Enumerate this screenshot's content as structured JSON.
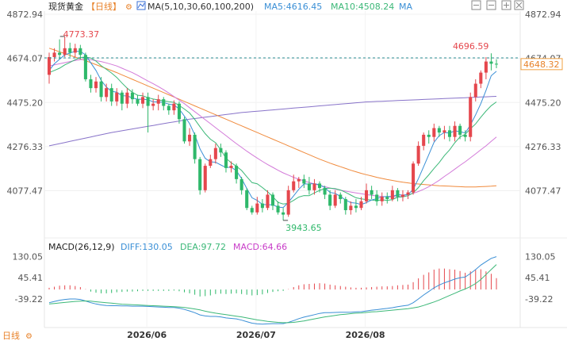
{
  "header": {
    "title": "现货黄金",
    "period": "【日线】",
    "ma_label": "MA(5,10,30,60,100,200)",
    "ma5": "MA5:4616.45",
    "ma10": "MA10:4508.24",
    "ma": "MA"
  },
  "macd_header": {
    "label": "MACD(26,12,9)",
    "diff": "DIFF:130.05",
    "dea": "DEA:97.72",
    "macd": "MACD:64.66"
  },
  "footer": {
    "period_switch": "日线"
  },
  "chart_data": {
    "type": "candlestick",
    "y_ticks": [
      "4872.94",
      "4674.07",
      "4475.20",
      "4276.33",
      "4077.47"
    ],
    "ylim": [
      3943.65,
      4872.94
    ],
    "current_price": "4648.32",
    "high_label": "4773.37",
    "low_label": "3943.65",
    "recent_high_label": "4696.59",
    "x_ticks": [
      "2026/06",
      "2026/07",
      "2026/08"
    ],
    "colors": {
      "up": "#e5474d",
      "down": "#2eb86a",
      "ma5": "#3a8fd6",
      "ma10": "#3cb878",
      "ma30": "#d37ad9",
      "ma60": "#f08a3c",
      "ma100": "#8873c9"
    },
    "candles": [
      [
        4600,
        4680,
        4560,
        4700
      ],
      [
        4680,
        4700,
        4660,
        4720
      ],
      [
        4700,
        4690,
        4670,
        4760
      ],
      [
        4690,
        4720,
        4680,
        4773
      ],
      [
        4720,
        4700,
        4680,
        4745
      ],
      [
        4700,
        4720,
        4680,
        4740
      ],
      [
        4720,
        4690,
        4670,
        4735
      ],
      [
        4690,
        4580,
        4570,
        4700
      ],
      [
        4580,
        4540,
        4520,
        4600
      ],
      [
        4540,
        4570,
        4520,
        4590
      ],
      [
        4570,
        4500,
        4480,
        4590
      ],
      [
        4500,
        4540,
        4480,
        4560
      ],
      [
        4540,
        4480,
        4460,
        4560
      ],
      [
        4480,
        4520,
        4460,
        4540
      ],
      [
        4520,
        4470,
        4440,
        4530
      ],
      [
        4470,
        4520,
        4450,
        4540
      ],
      [
        4520,
        4490,
        4470,
        4535
      ],
      [
        4490,
        4470,
        4460,
        4510
      ],
      [
        4470,
        4500,
        4450,
        4520
      ],
      [
        4500,
        4460,
        4340,
        4520
      ],
      [
        4460,
        4470,
        4440,
        4490
      ],
      [
        4470,
        4490,
        4440,
        4510
      ],
      [
        4490,
        4460,
        4440,
        4500
      ],
      [
        4460,
        4440,
        4420,
        4470
      ],
      [
        4440,
        4470,
        4420,
        4485
      ],
      [
        4470,
        4400,
        4380,
        4480
      ],
      [
        4400,
        4300,
        4290,
        4410
      ],
      [
        4300,
        4330,
        4280,
        4360
      ],
      [
        4330,
        4220,
        4200,
        4340
      ],
      [
        4220,
        4080,
        4060,
        4230
      ],
      [
        4080,
        4190,
        4070,
        4200
      ],
      [
        4190,
        4220,
        4180,
        4240
      ],
      [
        4220,
        4270,
        4200,
        4290
      ],
      [
        4270,
        4250,
        4230,
        4290
      ],
      [
        4250,
        4180,
        4160,
        4260
      ],
      [
        4180,
        4190,
        4160,
        4210
      ],
      [
        4190,
        4130,
        4110,
        4200
      ],
      [
        4130,
        4080,
        4060,
        4140
      ],
      [
        4080,
        4000,
        3990,
        4090
      ],
      [
        4000,
        3980,
        3970,
        4010
      ],
      [
        3980,
        4020,
        3970,
        4050
      ],
      [
        4020,
        4000,
        3980,
        4040
      ],
      [
        4000,
        4060,
        3990,
        4080
      ],
      [
        4060,
        4010,
        3990,
        4070
      ],
      [
        4010,
        3980,
        3970,
        4030
      ],
      [
        3980,
        3970,
        3944,
        4000
      ],
      [
        3970,
        4080,
        3960,
        4100
      ],
      [
        4080,
        4120,
        4070,
        4150
      ],
      [
        4120,
        4130,
        4090,
        4140
      ],
      [
        4130,
        4110,
        4090,
        4150
      ],
      [
        4110,
        4080,
        4060,
        4140
      ],
      [
        4080,
        4110,
        4060,
        4130
      ],
      [
        4110,
        4090,
        4070,
        4120
      ],
      [
        4090,
        4060,
        4040,
        4100
      ],
      [
        4060,
        4010,
        3990,
        4080
      ],
      [
        4010,
        4060,
        4000,
        4080
      ],
      [
        4060,
        4040,
        4020,
        4070
      ],
      [
        4040,
        3990,
        3970,
        4050
      ],
      [
        3990,
        4010,
        3970,
        4030
      ],
      [
        4010,
        4000,
        3980,
        4040
      ],
      [
        4000,
        4030,
        3990,
        4050
      ],
      [
        4030,
        4080,
        4020,
        4110
      ],
      [
        4080,
        4060,
        4040,
        4100
      ],
      [
        4060,
        4030,
        4010,
        4080
      ],
      [
        4030,
        4050,
        4010,
        4070
      ],
      [
        4050,
        4040,
        4020,
        4070
      ],
      [
        4040,
        4080,
        4030,
        4100
      ],
      [
        4080,
        4050,
        4030,
        4090
      ],
      [
        4050,
        4060,
        4030,
        4080
      ],
      [
        4060,
        4070,
        4040,
        4080
      ],
      [
        4070,
        4200,
        4060,
        4210
      ],
      [
        4200,
        4280,
        4190,
        4300
      ],
      [
        4280,
        4330,
        4260,
        4340
      ],
      [
        4330,
        4320,
        4290,
        4350
      ],
      [
        4320,
        4360,
        4300,
        4380
      ],
      [
        4360,
        4340,
        4320,
        4370
      ],
      [
        4340,
        4350,
        4310,
        4370
      ],
      [
        4350,
        4320,
        4300,
        4370
      ],
      [
        4320,
        4370,
        4300,
        4390
      ],
      [
        4370,
        4330,
        4310,
        4380
      ],
      [
        4330,
        4320,
        4300,
        4350
      ],
      [
        4320,
        4500,
        4300,
        4520
      ],
      [
        4500,
        4560,
        4480,
        4580
      ],
      [
        4560,
        4610,
        4540,
        4620
      ],
      [
        4610,
        4660,
        4580,
        4680
      ],
      [
        4660,
        4650,
        4620,
        4697
      ],
      [
        4650,
        4648,
        4630,
        4670
      ]
    ],
    "ma_series": {
      "ma5": [
        4620,
        4650,
        4670,
        4690,
        4698,
        4706,
        4706,
        4690,
        4654,
        4620,
        4575,
        4545,
        4526,
        4522,
        4506,
        4505,
        4496,
        4490,
        4490,
        4488,
        4478,
        4478,
        4476,
        4468,
        4464,
        4446,
        4414,
        4380,
        4330,
        4266,
        4224,
        4208,
        4206,
        4194,
        4182,
        4184,
        4168,
        4132,
        4088,
        4046,
        4034,
        4016,
        4014,
        4014,
        4004,
        4002,
        4026,
        4054,
        4084,
        4108,
        4108,
        4110,
        4104,
        4092,
        4070,
        4066,
        4052,
        4036,
        4024,
        4022,
        4016,
        4024,
        4036,
        4042,
        4050,
        4052,
        4052,
        4060,
        4058,
        4060,
        4084,
        4132,
        4186,
        4240,
        4296,
        4326,
        4340,
        4338,
        4348,
        4344,
        4338,
        4374,
        4420,
        4470,
        4530,
        4596,
        4616
      ],
      "ma10": [
        4610,
        4620,
        4630,
        4645,
        4656,
        4668,
        4678,
        4680,
        4676,
        4662,
        4641,
        4625,
        4608,
        4588,
        4563,
        4540,
        4521,
        4508,
        4506,
        4497,
        4491,
        4487,
        4483,
        4479,
        4476,
        4462,
        4446,
        4428,
        4399,
        4366,
        4335,
        4310,
        4294,
        4262,
        4224,
        4204,
        4188,
        4169,
        4141,
        4114,
        4109,
        4092,
        4073,
        4051,
        4025,
        4018,
        4021,
        4034,
        4049,
        4056,
        4055,
        4068,
        4079,
        4088,
        4089,
        4087,
        4081,
        4070,
        4058,
        4046,
        4041,
        4038,
        4036,
        4033,
        4037,
        4034,
        4038,
        4048,
        4050,
        4055,
        4068,
        4092,
        4123,
        4149,
        4178,
        4205,
        4236,
        4262,
        4294,
        4320,
        4332,
        4357,
        4379,
        4409,
        4437,
        4461,
        4478
      ],
      "ma30": [
        4640,
        4645,
        4650,
        4655,
        4660,
        4665,
        4668,
        4670,
        4668,
        4664,
        4660,
        4654,
        4647,
        4640,
        4630,
        4620,
        4610,
        4598,
        4585,
        4572,
        4560,
        4547,
        4533,
        4518,
        4502,
        4486,
        4470,
        4452,
        4434,
        4416,
        4398,
        4380,
        4362,
        4344,
        4326,
        4308,
        4290,
        4273,
        4256,
        4240,
        4225,
        4210,
        4196,
        4183,
        4170,
        4158,
        4148,
        4138,
        4130,
        4122,
        4115,
        4108,
        4102,
        4096,
        4090,
        4085,
        4080,
        4076,
        4072,
        4068,
        4064,
        4060,
        4057,
        4054,
        4052,
        4050,
        4050,
        4052,
        4055,
        4060,
        4066,
        4074,
        4084,
        4096,
        4110,
        4125,
        4142,
        4158,
        4175,
        4192,
        4208,
        4226,
        4244,
        4262,
        4280,
        4300,
        4320
      ],
      "ma60": [
        4720,
        4712,
        4704,
        4696,
        4688,
        4680,
        4672,
        4664,
        4655,
        4646,
        4637,
        4628,
        4619,
        4610,
        4600,
        4590,
        4580,
        4570,
        4560,
        4550,
        4540,
        4530,
        4520,
        4510,
        4500,
        4490,
        4480,
        4470,
        4460,
        4450,
        4440,
        4430,
        4420,
        4410,
        4400,
        4390,
        4380,
        4370,
        4360,
        4350,
        4340,
        4330,
        4320,
        4310,
        4300,
        4290,
        4280,
        4270,
        4260,
        4250,
        4240,
        4230,
        4220,
        4211,
        4202,
        4194,
        4186,
        4178,
        4170,
        4163,
        4156,
        4150,
        4144,
        4138,
        4133,
        4128,
        4124,
        4120,
        4116,
        4113,
        4110,
        4108,
        4106,
        4104,
        4102,
        4100,
        4099,
        4098,
        4097,
        4096,
        4095,
        4095,
        4095,
        4096,
        4097,
        4098,
        4100
      ],
      "ma100": [
        4280,
        4285,
        4290,
        4295,
        4300,
        4305,
        4310,
        4315,
        4320,
        4325,
        4330,
        4335,
        4340,
        4344,
        4348,
        4352,
        4356,
        4360,
        4364,
        4368,
        4372,
        4376,
        4380,
        4384,
        4388,
        4392,
        4396,
        4400,
        4403,
        4406,
        4409,
        4412,
        4415,
        4418,
        4421,
        4424,
        4427,
        4430,
        4432,
        4434,
        4436,
        4438,
        4440,
        4442,
        4444,
        4446,
        4448,
        4450,
        4452,
        4454,
        4456,
        4458,
        4460,
        4462,
        4464,
        4466,
        4468,
        4470,
        4472,
        4474,
        4476,
        4478,
        4479,
        4480,
        4481,
        4482,
        4483,
        4484,
        4485,
        4486,
        4487,
        4488,
        4489,
        4490,
        4491,
        4492,
        4493,
        4494,
        4495,
        4496,
        4497,
        4498,
        4499,
        4500,
        4501,
        4502,
        4503
      ]
    },
    "macd": {
      "y_ticks": [
        "130.05",
        "45.41",
        "-39.22"
      ],
      "diff": [
        -55,
        -50,
        -45,
        -42,
        -40,
        -40,
        -42,
        -48,
        -55,
        -60,
        -64,
        -66,
        -67,
        -67,
        -68,
        -68,
        -69,
        -69,
        -69,
        -70,
        -71,
        -72,
        -73,
        -74,
        -74,
        -77,
        -82,
        -88,
        -95,
        -104,
        -108,
        -110,
        -110,
        -112,
        -116,
        -118,
        -120,
        -125,
        -131,
        -137,
        -140,
        -141,
        -140,
        -139,
        -139,
        -139,
        -134,
        -127,
        -119,
        -113,
        -108,
        -103,
        -98,
        -95,
        -95,
        -94,
        -93,
        -93,
        -93,
        -92,
        -91,
        -88,
        -85,
        -83,
        -80,
        -78,
        -75,
        -71,
        -68,
        -65,
        -55,
        -40,
        -24,
        -10,
        5,
        16,
        25,
        32,
        40,
        45,
        48,
        62,
        78,
        96,
        110,
        123,
        130
      ],
      "dea": [
        -60,
        -58,
        -56,
        -54,
        -52,
        -50,
        -49,
        -48,
        -49,
        -51,
        -53,
        -55,
        -57,
        -59,
        -61,
        -62,
        -63,
        -64,
        -65,
        -66,
        -67,
        -68,
        -69,
        -70,
        -71,
        -72,
        -74,
        -77,
        -80,
        -84,
        -89,
        -93,
        -97,
        -100,
        -103,
        -106,
        -109,
        -112,
        -116,
        -120,
        -124,
        -127,
        -130,
        -132,
        -134,
        -135,
        -135,
        -134,
        -131,
        -128,
        -124,
        -120,
        -116,
        -112,
        -109,
        -106,
        -103,
        -101,
        -99,
        -97,
        -96,
        -94,
        -92,
        -91,
        -89,
        -87,
        -85,
        -83,
        -81,
        -79,
        -76,
        -72,
        -66,
        -59,
        -52,
        -44,
        -35,
        -26,
        -17,
        -8,
        0,
        10,
        22,
        38,
        58,
        78,
        98
      ],
      "hist": [
        10,
        16,
        22,
        24,
        24,
        20,
        14,
        2,
        -12,
        -18,
        -22,
        -22,
        -20,
        -16,
        -14,
        -12,
        -12,
        -10,
        -8,
        -8,
        -8,
        -8,
        -8,
        -8,
        -6,
        -10,
        -16,
        -22,
        -30,
        -40,
        -38,
        -34,
        -26,
        -24,
        -26,
        -24,
        -22,
        -26,
        -30,
        -34,
        -32,
        -28,
        -20,
        -14,
        -10,
        -8,
        2,
        14,
        24,
        30,
        32,
        34,
        36,
        34,
        28,
        24,
        20,
        16,
        12,
        10,
        10,
        12,
        14,
        16,
        18,
        18,
        20,
        24,
        26,
        28,
        42,
        64,
        84,
        98,
        114,
        120,
        120,
        116,
        114,
        106,
        96,
        104,
        112,
        116,
        104,
        90,
        65
      ]
    }
  }
}
